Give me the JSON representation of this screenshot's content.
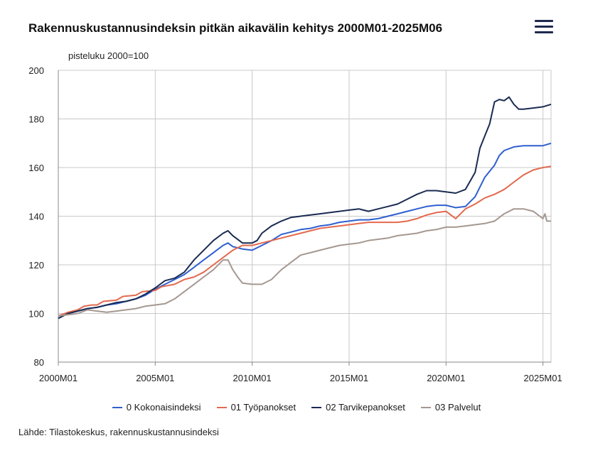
{
  "title": "Rakennuskustannusindeksin pitkän aikavälin kehitys 2000M01-2025M06",
  "menu_icon": "hamburger-menu-icon",
  "unit_label": "pisteluku 2000=100",
  "source": "Lähde: Tilastokeskus, rakennuskustannusindeksi",
  "colors": {
    "kokonais": "#2f5fcf",
    "tyo": "#e3694e",
    "tarvike": "#1a2b52",
    "palvelut": "#a59891",
    "grid": "#c8c8c8",
    "axis": "#888888"
  },
  "chart_data": {
    "type": "line",
    "title": "Rakennuskustannusindeksin pitkän aikavälin kehitys 2000M01-2025M06",
    "ylabel": "pisteluku 2000=100",
    "xlabel": "",
    "ylim": [
      80,
      200
    ],
    "yticks": [
      80,
      100,
      120,
      140,
      160,
      180,
      200
    ],
    "xlim": [
      2000.0,
      2025.4167
    ],
    "xticks": [
      {
        "value": 2000,
        "label": "2000M01"
      },
      {
        "value": 2005,
        "label": "2005M01"
      },
      {
        "value": 2010,
        "label": "2010M01"
      },
      {
        "value": 2015,
        "label": "2015M01"
      },
      {
        "value": 2020,
        "label": "2020M01"
      },
      {
        "value": 2025,
        "label": "2025M01"
      }
    ],
    "grid": true,
    "legend_position": "bottom",
    "series": [
      {
        "name": "0 Kokonaisindeksi",
        "color_key": "kokonais",
        "points": [
          [
            2000.0,
            98
          ],
          [
            2000.5,
            100
          ],
          [
            2001.0,
            101
          ],
          [
            2001.5,
            102
          ],
          [
            2002.0,
            102.5
          ],
          [
            2002.5,
            103.5
          ],
          [
            2003.0,
            104
          ],
          [
            2003.5,
            105
          ],
          [
            2004.0,
            106
          ],
          [
            2004.5,
            107.5
          ],
          [
            2005.0,
            110
          ],
          [
            2005.5,
            112
          ],
          [
            2006.0,
            114
          ],
          [
            2006.5,
            116
          ],
          [
            2007.0,
            119
          ],
          [
            2007.5,
            122
          ],
          [
            2008.0,
            125
          ],
          [
            2008.5,
            128
          ],
          [
            2008.75,
            129
          ],
          [
            2009.0,
            127.5
          ],
          [
            2009.5,
            126.5
          ],
          [
            2010.0,
            126
          ],
          [
            2010.5,
            128
          ],
          [
            2011.0,
            130
          ],
          [
            2011.5,
            132.5
          ],
          [
            2012.0,
            133.5
          ],
          [
            2012.5,
            134.5
          ],
          [
            2013.0,
            135
          ],
          [
            2013.5,
            136
          ],
          [
            2014.0,
            136.5
          ],
          [
            2014.5,
            137.5
          ],
          [
            2015.0,
            138
          ],
          [
            2015.5,
            138.5
          ],
          [
            2016.0,
            138.5
          ],
          [
            2016.5,
            139
          ],
          [
            2017.0,
            140
          ],
          [
            2017.5,
            141
          ],
          [
            2018.0,
            142
          ],
          [
            2018.5,
            143
          ],
          [
            2019.0,
            144
          ],
          [
            2019.5,
            144.5
          ],
          [
            2020.0,
            144.5
          ],
          [
            2020.5,
            143.5
          ],
          [
            2021.0,
            144
          ],
          [
            2021.5,
            148
          ],
          [
            2022.0,
            156
          ],
          [
            2022.5,
            161
          ],
          [
            2022.75,
            165
          ],
          [
            2023.0,
            167
          ],
          [
            2023.5,
            168.5
          ],
          [
            2024.0,
            169
          ],
          [
            2024.5,
            169
          ],
          [
            2025.0,
            169
          ],
          [
            2025.4167,
            170
          ]
        ]
      },
      {
        "name": "01 Työpanokset",
        "color_key": "tyo",
        "points": [
          [
            2000.0,
            99
          ],
          [
            2000.5,
            100.5
          ],
          [
            2001.0,
            101.5
          ],
          [
            2001.33,
            103
          ],
          [
            2001.75,
            103.5
          ],
          [
            2002.0,
            103.5
          ],
          [
            2002.33,
            105
          ],
          [
            2003.0,
            105.5
          ],
          [
            2003.33,
            107
          ],
          [
            2004.0,
            107.5
          ],
          [
            2004.33,
            109
          ],
          [
            2005.0,
            109.5
          ],
          [
            2005.33,
            111
          ],
          [
            2006.0,
            112
          ],
          [
            2006.5,
            114
          ],
          [
            2007.0,
            115
          ],
          [
            2007.5,
            117
          ],
          [
            2008.0,
            120
          ],
          [
            2008.5,
            123
          ],
          [
            2009.0,
            126
          ],
          [
            2009.5,
            128
          ],
          [
            2010.0,
            128
          ],
          [
            2010.5,
            129
          ],
          [
            2011.0,
            130
          ],
          [
            2011.5,
            131
          ],
          [
            2012.0,
            132
          ],
          [
            2012.5,
            133
          ],
          [
            2013.0,
            134
          ],
          [
            2013.5,
            135
          ],
          [
            2014.0,
            135.5
          ],
          [
            2014.5,
            136
          ],
          [
            2015.0,
            136.5
          ],
          [
            2015.5,
            137
          ],
          [
            2016.0,
            137.5
          ],
          [
            2016.5,
            137.5
          ],
          [
            2017.0,
            137.5
          ],
          [
            2017.5,
            137.5
          ],
          [
            2018.0,
            138
          ],
          [
            2018.5,
            139
          ],
          [
            2019.0,
            140.5
          ],
          [
            2019.5,
            141.5
          ],
          [
            2020.0,
            142
          ],
          [
            2020.5,
            139
          ],
          [
            2021.0,
            143
          ],
          [
            2021.5,
            145
          ],
          [
            2022.0,
            147.5
          ],
          [
            2022.5,
            149
          ],
          [
            2023.0,
            151
          ],
          [
            2023.5,
            154
          ],
          [
            2024.0,
            157
          ],
          [
            2024.5,
            159
          ],
          [
            2025.0,
            160
          ],
          [
            2025.4167,
            160.5
          ]
        ]
      },
      {
        "name": "02 Tarvikepanokset",
        "color_key": "tarvike",
        "points": [
          [
            2000.0,
            98
          ],
          [
            2000.5,
            100
          ],
          [
            2001.0,
            101
          ],
          [
            2001.5,
            102
          ],
          [
            2002.0,
            102.5
          ],
          [
            2002.5,
            103.5
          ],
          [
            2003.0,
            104.5
          ],
          [
            2003.5,
            105
          ],
          [
            2004.0,
            106
          ],
          [
            2004.5,
            108
          ],
          [
            2005.0,
            110.5
          ],
          [
            2005.5,
            113.5
          ],
          [
            2006.0,
            114.5
          ],
          [
            2006.5,
            117
          ],
          [
            2007.0,
            122
          ],
          [
            2007.5,
            126
          ],
          [
            2008.0,
            130
          ],
          [
            2008.5,
            133
          ],
          [
            2008.75,
            134
          ],
          [
            2009.0,
            132
          ],
          [
            2009.5,
            129
          ],
          [
            2010.0,
            129
          ],
          [
            2010.25,
            130
          ],
          [
            2010.5,
            133
          ],
          [
            2011.0,
            136
          ],
          [
            2011.5,
            138
          ],
          [
            2012.0,
            139.5
          ],
          [
            2012.5,
            140
          ],
          [
            2013.0,
            140.5
          ],
          [
            2013.5,
            141
          ],
          [
            2014.0,
            141.5
          ],
          [
            2014.5,
            142
          ],
          [
            2015.0,
            142.5
          ],
          [
            2015.5,
            143
          ],
          [
            2016.0,
            142
          ],
          [
            2016.5,
            143
          ],
          [
            2017.0,
            144
          ],
          [
            2017.5,
            145
          ],
          [
            2018.0,
            147
          ],
          [
            2018.5,
            149
          ],
          [
            2019.0,
            150.5
          ],
          [
            2019.5,
            150.5
          ],
          [
            2020.0,
            150
          ],
          [
            2020.5,
            149.5
          ],
          [
            2021.0,
            151
          ],
          [
            2021.5,
            158
          ],
          [
            2021.75,
            168
          ],
          [
            2022.0,
            173
          ],
          [
            2022.25,
            178
          ],
          [
            2022.5,
            187
          ],
          [
            2022.75,
            188
          ],
          [
            2023.0,
            187.5
          ],
          [
            2023.25,
            189
          ],
          [
            2023.5,
            186
          ],
          [
            2023.75,
            184
          ],
          [
            2024.0,
            184
          ],
          [
            2024.5,
            184.5
          ],
          [
            2025.0,
            185
          ],
          [
            2025.4167,
            186
          ]
        ]
      },
      {
        "name": "03 Palvelut",
        "color_key": "palvelut",
        "points": [
          [
            2000.0,
            99
          ],
          [
            2000.5,
            99.5
          ],
          [
            2001.0,
            100
          ],
          [
            2001.5,
            101.5
          ],
          [
            2002.0,
            101
          ],
          [
            2002.5,
            100.5
          ],
          [
            2003.0,
            101
          ],
          [
            2003.5,
            101.5
          ],
          [
            2004.0,
            102
          ],
          [
            2004.5,
            103
          ],
          [
            2005.0,
            103.5
          ],
          [
            2005.5,
            104
          ],
          [
            2006.0,
            106
          ],
          [
            2006.5,
            109
          ],
          [
            2007.0,
            112
          ],
          [
            2007.5,
            115
          ],
          [
            2008.0,
            118
          ],
          [
            2008.5,
            122
          ],
          [
            2008.75,
            122
          ],
          [
            2009.0,
            118
          ],
          [
            2009.25,
            115
          ],
          [
            2009.5,
            112.5
          ],
          [
            2010.0,
            112
          ],
          [
            2010.5,
            112
          ],
          [
            2011.0,
            114
          ],
          [
            2011.5,
            118
          ],
          [
            2012.0,
            121
          ],
          [
            2012.5,
            124
          ],
          [
            2013.0,
            125
          ],
          [
            2013.5,
            126
          ],
          [
            2014.0,
            127
          ],
          [
            2014.5,
            128
          ],
          [
            2015.0,
            128.5
          ],
          [
            2015.5,
            129
          ],
          [
            2016.0,
            130
          ],
          [
            2016.5,
            130.5
          ],
          [
            2017.0,
            131
          ],
          [
            2017.5,
            132
          ],
          [
            2018.0,
            132.5
          ],
          [
            2018.5,
            133
          ],
          [
            2019.0,
            134
          ],
          [
            2019.5,
            134.5
          ],
          [
            2020.0,
            135.5
          ],
          [
            2020.5,
            135.5
          ],
          [
            2021.0,
            136
          ],
          [
            2021.5,
            136.5
          ],
          [
            2022.0,
            137
          ],
          [
            2022.5,
            138
          ],
          [
            2023.0,
            141
          ],
          [
            2023.5,
            143
          ],
          [
            2024.0,
            143
          ],
          [
            2024.5,
            142
          ],
          [
            2025.0,
            139
          ],
          [
            2025.1,
            141
          ],
          [
            2025.2,
            138
          ],
          [
            2025.4167,
            138
          ]
        ]
      }
    ]
  }
}
